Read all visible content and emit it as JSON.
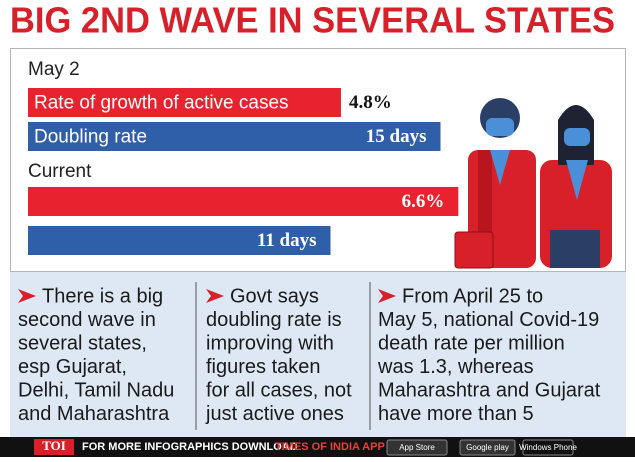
{
  "header": {
    "title": "BIG 2ND WAVE IN SEVERAL STATES"
  },
  "groups": [
    {
      "label": "May 2",
      "bars": [
        {
          "name": "Rate of growth of active cases",
          "value": 4.8,
          "value_label": "4.8%"
        },
        {
          "name": "Doubling rate",
          "value": 15,
          "value_label": "15 days"
        }
      ]
    },
    {
      "label": "Current",
      "bars": [
        {
          "value": 6.6,
          "value_label": "6.6%"
        },
        {
          "value": 11,
          "value_label": "11 days"
        }
      ]
    }
  ],
  "points": [
    [
      "There is a big",
      "second wave in",
      "several states,",
      "esp Gujarat,",
      "Delhi, Tamil Nadu",
      "and Maharashtra"
    ],
    [
      "Govt says",
      "doubling rate is",
      "improving with",
      "figures taken",
      "for all cases, not",
      "just active ones"
    ],
    [
      "From April 25 to",
      "May 5, national Covid-19",
      "death rate per million",
      "was 1.3, whereas",
      "Maharashtra and Gujarat",
      "have more than 5"
    ]
  ],
  "footer": {
    "brand": "TOI",
    "text": "FOR MORE INFOGRAPHICS DOWNLOAD",
    "app": "TIMES OF INDIA APP",
    "badges": [
      "App Store",
      "Google play",
      "Windows Phone"
    ]
  }
}
